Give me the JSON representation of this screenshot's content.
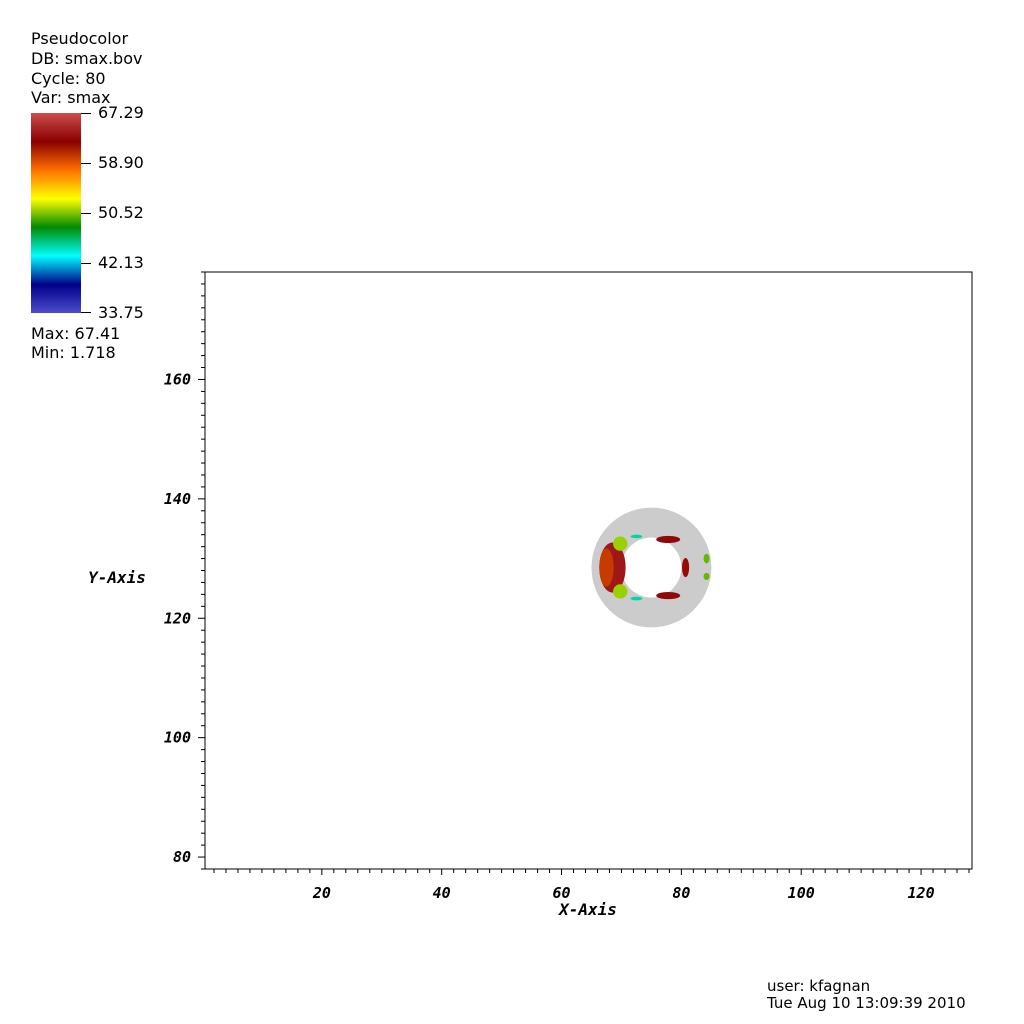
{
  "legend": {
    "plot_type": "Pseudocolor",
    "db": "DB: smax.bov",
    "cycle": "Cycle: 80",
    "var": "Var: smax",
    "max": "Max:  67.41",
    "min": "Min:  1.718",
    "colorbar_labels": [
      "67.29",
      "58.90",
      "50.52",
      "42.13",
      "33.75"
    ],
    "colormap_colors": [
      "#cc4c4c",
      "#8a0000",
      "#ff7000",
      "#ffff00",
      "#008a00",
      "#00ffff",
      "#00008a",
      "#4c4ccc"
    ]
  },
  "footer": {
    "user": "user: kfagnan",
    "timestamp": "Tue Aug 10 13:09:39 2010"
  },
  "chart_data": {
    "type": "heatmap",
    "xlabel": "X-Axis",
    "ylabel": "Y-Axis",
    "xlim": [
      0.5,
      128.5
    ],
    "ylim": [
      78,
      178
    ],
    "x_ticks": [
      20,
      40,
      60,
      80,
      100,
      120
    ],
    "y_ticks": [
      80,
      100,
      120,
      140,
      160
    ],
    "color_range": [
      33.75,
      67.29
    ],
    "below_range_color": "#cccccc",
    "annulus": {
      "center": [
        75,
        128.5
      ],
      "inner_radius": 5,
      "outer_radius": 10
    },
    "hotspots": [
      {
        "x": 68.5,
        "y": 128.5,
        "rx": 2.2,
        "ry": 4.2,
        "value": 64
      },
      {
        "x": 67.5,
        "y": 128.5,
        "rx": 1.2,
        "ry": 3.2,
        "value": 60
      },
      {
        "x": 69.8,
        "y": 124.5,
        "rx": 1.2,
        "ry": 1.2,
        "value": 51
      },
      {
        "x": 69.8,
        "y": 132.5,
        "rx": 1.2,
        "ry": 1.2,
        "value": 51
      },
      {
        "x": 77.8,
        "y": 133.2,
        "rx": 2.0,
        "ry": 0.6,
        "value": 63
      },
      {
        "x": 77.8,
        "y": 123.8,
        "rx": 2.0,
        "ry": 0.6,
        "value": 63
      },
      {
        "x": 80.7,
        "y": 128.5,
        "rx": 0.6,
        "ry": 1.6,
        "value": 62
      },
      {
        "x": 84.2,
        "y": 130.0,
        "rx": 0.5,
        "ry": 0.8,
        "value": 50
      },
      {
        "x": 84.2,
        "y": 127.0,
        "rx": 0.5,
        "ry": 0.6,
        "value": 50
      },
      {
        "x": 72.5,
        "y": 133.7,
        "rx": 1.0,
        "ry": 0.3,
        "value": 45
      },
      {
        "x": 72.5,
        "y": 123.3,
        "rx": 1.0,
        "ry": 0.3,
        "value": 45
      }
    ]
  }
}
